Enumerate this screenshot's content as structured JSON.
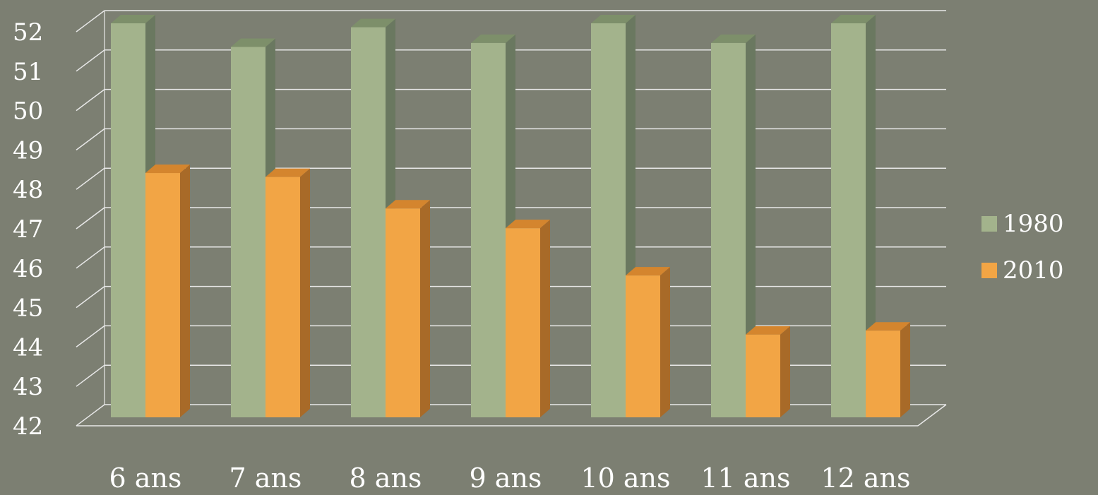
{
  "chart_data": {
    "type": "bar",
    "categories": [
      "6 ans",
      "7 ans",
      "8 ans",
      "9 ans",
      "10 ans",
      "11 ans",
      "12 ans"
    ],
    "series": [
      {
        "name": "1980",
        "values": [
          52,
          51.4,
          51.9,
          51.5,
          52,
          51.5,
          52
        ]
      },
      {
        "name": "2010",
        "values": [
          48.2,
          48.1,
          47.3,
          46.8,
          45.6,
          44.1,
          44.2
        ]
      }
    ],
    "yticks": [
      "42",
      "43",
      "44",
      "45",
      "46",
      "47",
      "48",
      "49",
      "50",
      "51",
      "52"
    ],
    "ylim": [
      42,
      52
    ],
    "grid": true,
    "legend_position": "right",
    "title": "",
    "xlabel": "",
    "ylabel": "",
    "colors": {
      "background": "#7c7f72",
      "series_1980_front": "#a3b38c",
      "series_1980_side": "#6a7860",
      "series_1980_top": "#7d8f6a",
      "series_2010_front": "#f2a545",
      "series_2010_side": "#a86a28",
      "series_2010_top": "#d4852e",
      "grid": "#e8e8e8"
    }
  }
}
